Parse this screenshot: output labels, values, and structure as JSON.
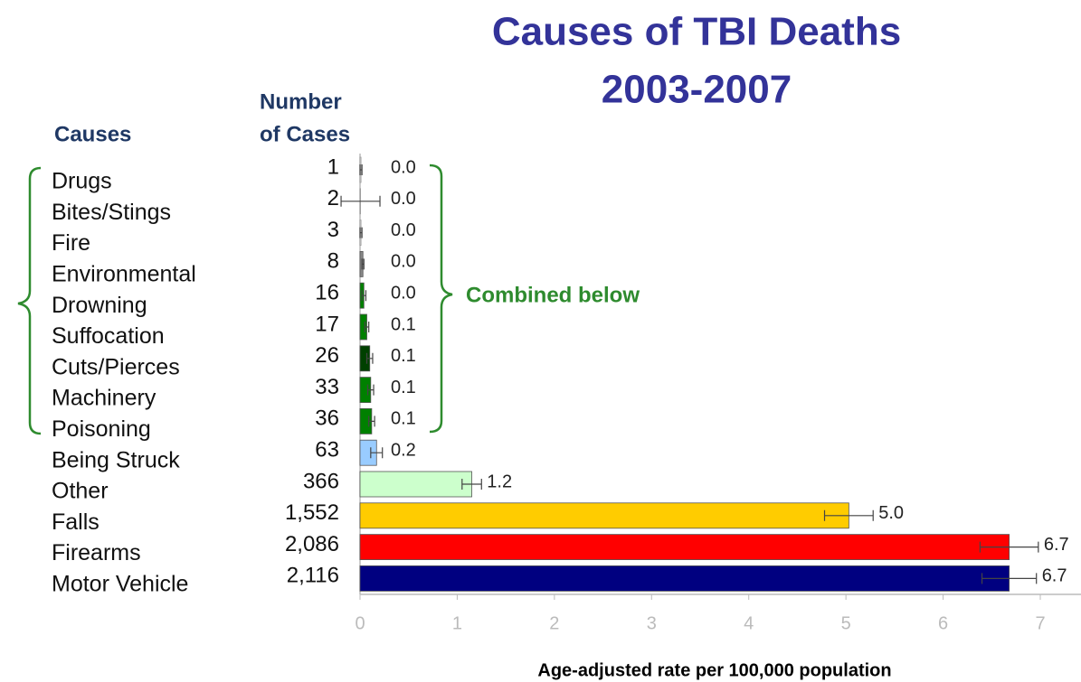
{
  "chart_data": {
    "type": "bar",
    "orientation": "horizontal",
    "title": "Causes of TBI Deaths",
    "subtitle": "2003-2007",
    "category_header": "Causes",
    "cases_header": [
      "Number",
      "of Cases"
    ],
    "categories": [
      "Drugs",
      "Bites/Stings",
      "Fire",
      "Environmental",
      "Drowning",
      "Suffocation",
      "Cuts/Pierces",
      "Machinery",
      "Poisoning",
      "Being Struck",
      "Other",
      "Falls",
      "Firearms",
      "Motor Vehicle"
    ],
    "cases": [
      "1",
      "2",
      "3",
      "8",
      "16",
      "17",
      "26",
      "33",
      "36",
      "63",
      "366",
      "1,552",
      "2,086",
      "2,116"
    ],
    "values": [
      0.01,
      0.005,
      0.01,
      0.03,
      0.04,
      0.07,
      0.1,
      0.11,
      0.12,
      0.17,
      1.15,
      5.03,
      6.68,
      6.68
    ],
    "value_labels": [
      "0.0",
      "0.0",
      "0.0",
      "0.0",
      "0.0",
      "0.1",
      "0.1",
      "0.1",
      "0.1",
      "0.2",
      "1.2",
      "5.0",
      "6.7",
      "6.7"
    ],
    "errors": [
      0.01,
      0.2,
      0.01,
      0.01,
      0.02,
      0.02,
      0.03,
      0.03,
      0.03,
      0.06,
      0.1,
      0.25,
      0.3,
      0.28
    ],
    "colors": [
      "#ffffff",
      "#ffffff",
      "#ffffff",
      "#888888",
      "#008000",
      "#008000",
      "#004000",
      "#008000",
      "#008000",
      "#99ccff",
      "#ccffcc",
      "#ffcc00",
      "#ff0000",
      "#000080"
    ],
    "annotation": "Combined below",
    "xlabel": "Age-adjusted rate per 100,000 population",
    "xlim": [
      0,
      7.4
    ],
    "xticks": [
      0,
      1,
      2,
      3,
      4,
      5,
      6,
      7
    ]
  }
}
